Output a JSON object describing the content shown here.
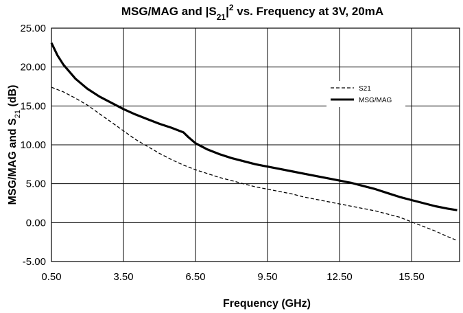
{
  "chart_data": {
    "type": "line",
    "title": "MSG/MAG and |S21|² vs. Frequency at 3V, 20mA",
    "title_parts": {
      "lead": "MSG/MAG and |S",
      "sub": "21",
      "sup": "2",
      "tail": " vs. Frequency at 3V, 20mA"
    },
    "xlabel": "Frequency (GHz)",
    "ylabel": "MSG/MAG and S21 (dB)",
    "ylabel_parts": {
      "lead": "MSG/MAG and S",
      "sub": "21",
      "tail": " (dB)"
    },
    "xlim": [
      0.5,
      17.5
    ],
    "ylim": [
      -5,
      25
    ],
    "x_ticks": [
      "0.50",
      "3.50",
      "6.50",
      "9.50",
      "12.50",
      "15.50"
    ],
    "x_tick_values": [
      0.5,
      3.5,
      6.5,
      9.5,
      12.5,
      15.5
    ],
    "y_ticks": [
      "25.00",
      "20.00",
      "15.00",
      "10.00",
      "5.00",
      "0.00",
      "-5.00"
    ],
    "y_tick_values": [
      25,
      20,
      15,
      10,
      5,
      0,
      -5
    ],
    "grid": true,
    "legend_position": "upper-right",
    "series": [
      {
        "name": "S21",
        "style": "dashed",
        "color": "#000000",
        "x": [
          0.5,
          1.0,
          1.5,
          2.0,
          2.5,
          3.0,
          3.5,
          4.0,
          4.5,
          5.0,
          5.5,
          6.0,
          6.5,
          7.0,
          7.5,
          8.0,
          8.5,
          9.0,
          9.5,
          10.0,
          10.5,
          11.0,
          11.5,
          12.0,
          12.5,
          13.0,
          13.5,
          14.0,
          14.5,
          15.0,
          15.5,
          16.0,
          16.5,
          17.0,
          17.4
        ],
        "y": [
          17.4,
          16.8,
          16.0,
          15.1,
          14.0,
          12.9,
          11.8,
          10.7,
          9.8,
          8.9,
          8.1,
          7.4,
          6.8,
          6.3,
          5.8,
          5.4,
          5.0,
          4.6,
          4.3,
          4.0,
          3.7,
          3.3,
          3.0,
          2.7,
          2.4,
          2.1,
          1.8,
          1.5,
          1.1,
          0.7,
          0.1,
          -0.5,
          -1.1,
          -1.8,
          -2.3
        ]
      },
      {
        "name": "MSG/MAG",
        "style": "solid",
        "color": "#000000",
        "x": [
          0.5,
          0.75,
          1.0,
          1.5,
          2.0,
          2.5,
          3.0,
          3.5,
          4.0,
          4.5,
          5.0,
          5.5,
          6.0,
          6.2,
          6.5,
          7.0,
          7.5,
          8.0,
          8.5,
          9.0,
          9.5,
          10.0,
          10.5,
          11.0,
          11.5,
          12.0,
          12.5,
          13.0,
          13.5,
          14.0,
          14.5,
          15.0,
          15.5,
          16.0,
          16.5,
          17.0,
          17.4
        ],
        "y": [
          23.1,
          21.5,
          20.3,
          18.5,
          17.2,
          16.2,
          15.4,
          14.6,
          13.9,
          13.3,
          12.7,
          12.2,
          11.6,
          11.0,
          10.2,
          9.4,
          8.8,
          8.3,
          7.9,
          7.5,
          7.2,
          6.9,
          6.6,
          6.3,
          6.0,
          5.7,
          5.4,
          5.1,
          4.7,
          4.3,
          3.8,
          3.3,
          2.9,
          2.5,
          2.1,
          1.8,
          1.6
        ]
      }
    ]
  }
}
